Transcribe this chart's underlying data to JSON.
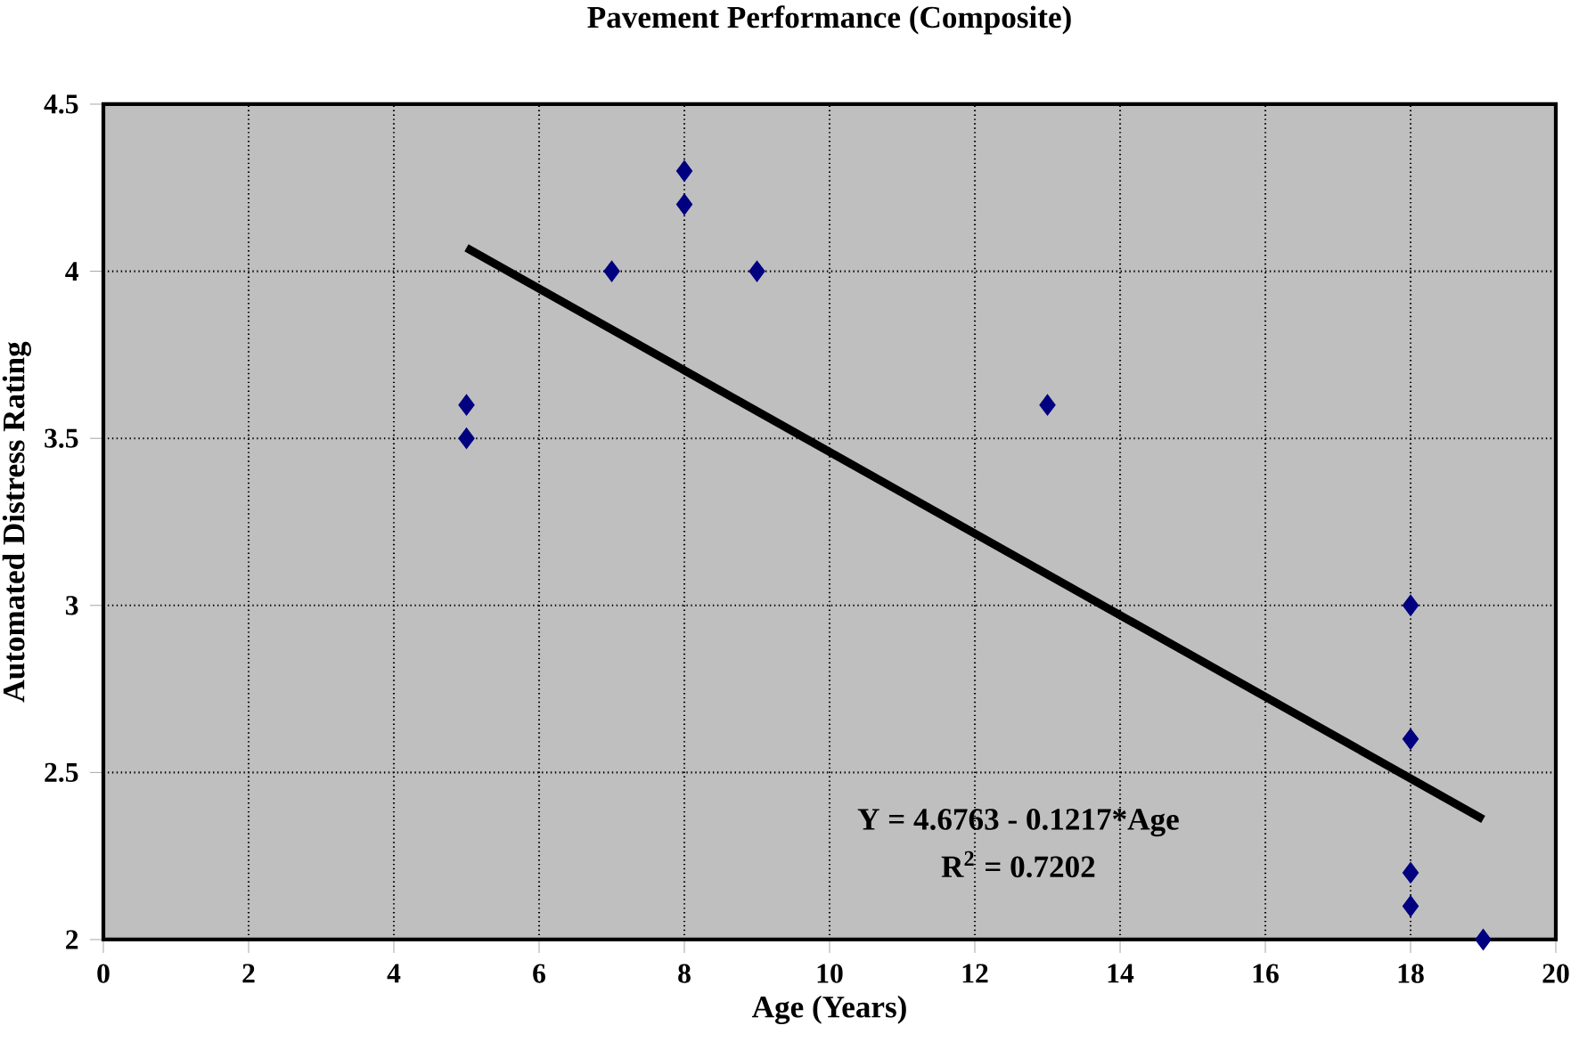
{
  "chart_data": {
    "type": "scatter",
    "title": "Pavement Performance (Composite)",
    "xlabel": "Age (Years)",
    "ylabel": "Automated Distress Rating",
    "xlim": [
      0,
      20
    ],
    "ylim": [
      2,
      4.5
    ],
    "xticks": [
      0,
      2,
      4,
      6,
      8,
      10,
      12,
      14,
      16,
      18,
      20
    ],
    "yticks": [
      2,
      2.5,
      3,
      3.5,
      4,
      4.5
    ],
    "grid": true,
    "series": [
      {
        "color": "#000080",
        "marker": "diamond",
        "x": [
          5,
          5,
          7,
          8,
          8,
          9,
          13,
          18,
          18,
          18,
          18,
          19
        ],
        "values": [
          3.6,
          3.5,
          4.0,
          4.3,
          4.2,
          4.0,
          3.6,
          3.0,
          2.6,
          2.2,
          2.1,
          2.0
        ]
      },
      {
        "type": "line",
        "color": "#000000",
        "marker": "none",
        "line_style": "solid",
        "x": [
          5,
          19
        ],
        "values": [
          4.07,
          2.36
        ]
      }
    ],
    "annotations": [
      "Y = 4.6763 - 0.1217*Age",
      "R$^{2}$ = 0.7202"
    ]
  }
}
